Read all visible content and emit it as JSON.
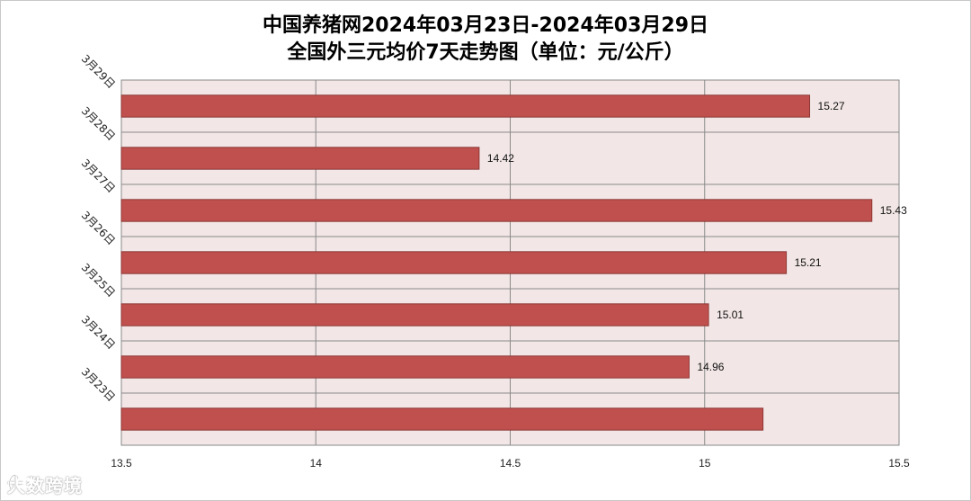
{
  "chart_data": {
    "type": "bar",
    "orientation": "horizontal",
    "title": [
      "中国养猪网2024年03月23日-2024年03月29日",
      "全国外三元均价7天走势图（单位：元/公斤）"
    ],
    "categories": [
      "3月29日",
      "3月28日",
      "3月27日",
      "3月26日",
      "3月25日",
      "3月24日",
      "3月23日"
    ],
    "series": [
      {
        "values": [
          15.27,
          14.42,
          15.43,
          15.21,
          15.01,
          14.96,
          15.15
        ],
        "data_labels": [
          "15.27",
          "14.42",
          "15.43",
          "15.21",
          "15.01",
          "14.96",
          null
        ],
        "color": "#c0504d"
      }
    ],
    "xlim": [
      13.5,
      15.5
    ],
    "x_ticks": [
      "13.5",
      "14",
      "14.5",
      "15",
      "15.5"
    ],
    "xlabel": "",
    "ylabel": "",
    "grid": true,
    "legend": "none",
    "plot_background": "#f2e6e6"
  },
  "watermark": {
    "text": "大数跨境"
  }
}
